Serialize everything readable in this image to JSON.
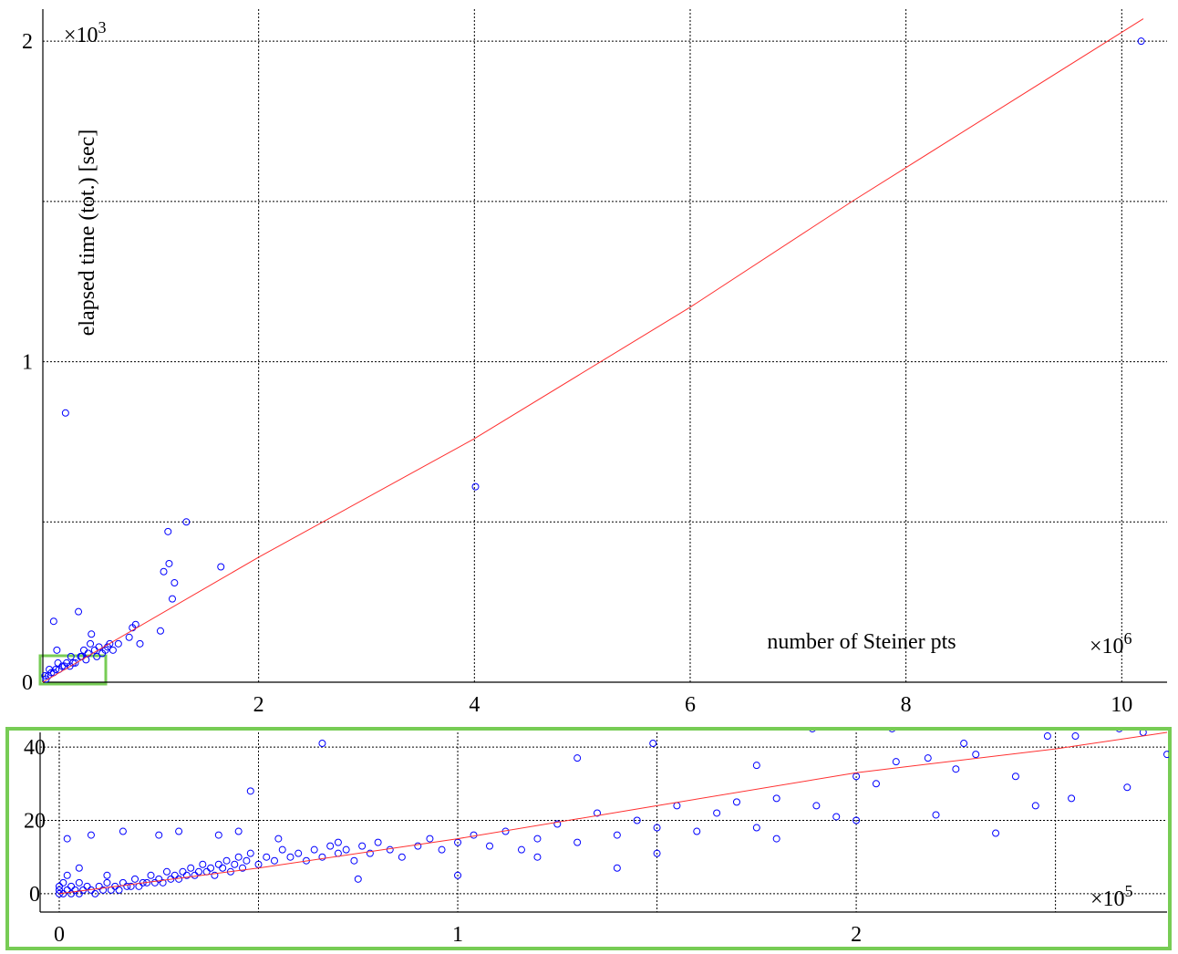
{
  "chart_data": [
    {
      "type": "scatter",
      "x_label": "number of Steiner pts",
      "y_label": "elapsed time (tot.) [sec]",
      "x_multiplier": {
        "base": "×10",
        "exponent": "6"
      },
      "y_multiplier": {
        "base": "×10",
        "exponent": "3"
      },
      "xlim": [
        0,
        10.42
      ],
      "ylim": [
        0,
        2.1
      ],
      "xticks": [
        2,
        4,
        6,
        8,
        10
      ],
      "yticks": [
        0,
        1,
        2
      ],
      "y_grid_extra": [
        0.5,
        1.5
      ],
      "grid": true,
      "series": [
        {
          "style": "markers",
          "color": "#0000ff",
          "x": [
            0.21,
            4.01,
            10.18,
            1.16,
            1.33,
            1.12,
            1.17,
            1.22,
            1.2,
            1.65,
            0.33,
            0.1,
            0.86,
            0.83,
            1.09,
            0.8,
            0.45,
            0.9,
            0.6,
            0.55,
            0.65,
            0.5,
            0.35,
            0.4,
            0.3,
            0.05,
            0.08,
            0.1,
            0.12,
            0.15,
            0.18,
            0.2,
            0.22,
            0.25,
            0.28,
            0.36,
            0.42,
            0.48,
            0.52,
            0.58,
            0.62,
            0.7,
            0.03,
            0.02,
            0.06,
            0.14,
            0.26,
            0.38,
            0.44,
            0.13
          ],
          "values": [
            0.84,
            0.61,
            2.0,
            0.47,
            0.5,
            0.345,
            0.37,
            0.31,
            0.26,
            0.36,
            0.22,
            0.19,
            0.18,
            0.17,
            0.16,
            0.14,
            0.15,
            0.12,
            0.11,
            0.09,
            0.1,
            0.08,
            0.08,
            0.07,
            0.06,
            0.02,
            0.03,
            0.03,
            0.04,
            0.04,
            0.05,
            0.05,
            0.06,
            0.05,
            0.06,
            0.08,
            0.09,
            0.1,
            0.11,
            0.1,
            0.12,
            0.12,
            0.01,
            0.02,
            0.04,
            0.06,
            0.08,
            0.1,
            0.12,
            0.1
          ]
        },
        {
          "style": "line",
          "color": "#ff3030",
          "x": [
            0,
            2,
            4,
            6,
            7.5,
            10.2
          ],
          "values": [
            0,
            0.39,
            0.76,
            1.17,
            1.5,
            2.07
          ]
        }
      ]
    },
    {
      "type": "scatter",
      "x_multiplier": {
        "base": "×10",
        "exponent": "5"
      },
      "xlim": [
        -0.048,
        2.78
      ],
      "ylim": [
        -5,
        44
      ],
      "xticks": [
        0,
        1,
        2
      ],
      "x_grid_extra": [
        0.5,
        1.5,
        2.5
      ],
      "yticks": [
        0,
        20,
        40
      ],
      "grid": true,
      "series": [
        {
          "style": "markers",
          "color": "#0000ff",
          "x": [
            0,
            0,
            0,
            0.01,
            0.01,
            0.02,
            0.02,
            0.03,
            0.03,
            0.04,
            0.05,
            0.05,
            0.06,
            0.07,
            0.08,
            0.09,
            0.1,
            0.11,
            0.12,
            0.13,
            0.14,
            0.15,
            0.16,
            0.17,
            0.18,
            0.19,
            0.2,
            0.21,
            0.22,
            0.23,
            0.24,
            0.25,
            0.26,
            0.27,
            0.28,
            0.29,
            0.3,
            0.31,
            0.32,
            0.33,
            0.34,
            0.35,
            0.36,
            0.37,
            0.38,
            0.39,
            0.4,
            0.41,
            0.42,
            0.43,
            0.44,
            0.45,
            0.46,
            0.47,
            0.48,
            0.5,
            0.52,
            0.54,
            0.56,
            0.58,
            0.6,
            0.62,
            0.64,
            0.66,
            0.68,
            0.7,
            0.72,
            0.74,
            0.76,
            0.78,
            0.8,
            0.83,
            0.86,
            0.9,
            0.93,
            0.96,
            1.0,
            1.04,
            1.08,
            1.12,
            1.16,
            1.2,
            1.25,
            1.3,
            1.35,
            1.4,
            1.45,
            1.5,
            1.55,
            1.6,
            1.65,
            1.7,
            1.75,
            1.8,
            1.9,
            1.95,
            2.0,
            2.05,
            2.1,
            2.25,
            2.3,
            2.4,
            2.45,
            2.55,
            2.72,
            0.02,
            0.08,
            0.16,
            0.25,
            0.3,
            0.4,
            0.45,
            0.05,
            0.12,
            0.66,
            0.48,
            1.3,
            1.49,
            1.89,
            2.09,
            2.48,
            2.66,
            2.78,
            2.68,
            2.54,
            2.35,
            2.2,
            2.18,
            2.27,
            1.75,
            1.8,
            1.0,
            0.75,
            1.2,
            0.55,
            0.7,
            1.4,
            1.5,
            2.0
          ],
          "values": [
            0,
            1,
            2,
            0,
            3,
            1,
            5,
            0,
            2,
            1,
            3,
            0,
            1,
            2,
            1,
            0,
            2,
            1,
            3,
            1,
            2,
            1,
            3,
            2,
            2,
            4,
            2,
            3,
            3,
            5,
            3,
            4,
            3,
            6,
            4,
            5,
            4,
            6,
            5,
            7,
            5,
            6,
            8,
            6,
            7,
            5,
            8,
            7,
            9,
            6,
            8,
            10,
            7,
            9,
            11,
            8,
            10,
            9,
            12,
            10,
            11,
            9,
            12,
            10,
            13,
            11,
            12,
            9,
            13,
            11,
            14,
            12,
            10,
            13,
            15,
            12,
            14,
            16,
            13,
            17,
            12,
            15,
            19,
            14,
            22,
            16,
            20,
            18,
            24,
            17,
            22,
            25,
            18,
            26,
            24,
            21,
            32,
            30,
            36,
            34,
            38,
            32,
            24,
            43,
            44,
            15,
            16,
            17,
            16,
            17,
            16,
            17,
            7,
            5,
            41,
            28,
            37,
            41,
            45,
            45,
            43,
            45,
            38,
            29,
            26,
            16.5,
            21.5,
            37,
            41,
            35,
            15,
            5,
            4,
            10,
            15,
            14,
            7,
            11,
            20
          ]
        },
        {
          "style": "line",
          "color": "#ff3030",
          "x": [
            0,
            0.5,
            1,
            1.5,
            2,
            2.5,
            2.78
          ],
          "values": [
            0,
            7,
            15,
            24,
            33,
            39.5,
            44
          ]
        }
      ]
    }
  ]
}
